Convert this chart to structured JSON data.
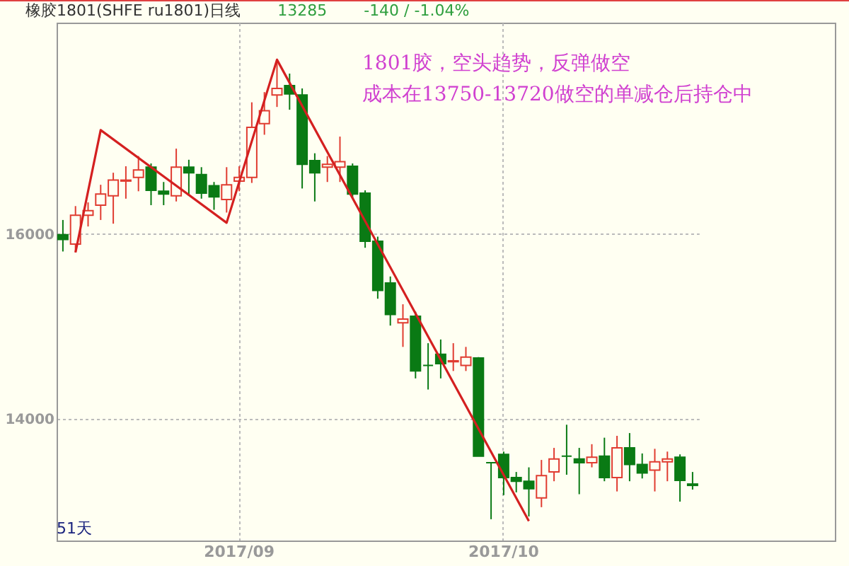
{
  "chart_data": {
    "type": "candlestick",
    "title": "橡胶1801(SHFE ru1801)日线",
    "annotations": [
      "13285",
      "-140 / -1.04%",
      "1801胶，空头趋势，反弹做空",
      "成本在13750-13720做空的单减仓后持仓中",
      "51天"
    ],
    "categories": [
      null,
      null,
      null,
      null,
      null,
      null,
      null,
      null,
      null,
      null,
      null,
      null,
      null,
      null,
      "2017/09",
      null,
      null,
      null,
      null,
      null,
      null,
      null,
      null,
      null,
      null,
      null,
      null,
      null,
      null,
      null,
      null,
      null,
      null,
      null,
      null,
      "2017/10",
      null,
      null,
      null,
      null,
      null,
      null,
      null,
      null,
      null,
      null,
      null,
      null,
      null,
      null,
      null
    ],
    "ohlc": [
      [
        15990,
        16150,
        15810,
        15940
      ],
      [
        15890,
        16300,
        15800,
        16200
      ],
      [
        16200,
        16340,
        16080,
        16250
      ],
      [
        16310,
        16530,
        16150,
        16430
      ],
      [
        16410,
        16660,
        16110,
        16580
      ],
      [
        16570,
        16730,
        16380,
        16580
      ],
      [
        16610,
        16840,
        16460,
        16690
      ],
      [
        16720,
        16760,
        16310,
        16470
      ],
      [
        16460,
        16560,
        16310,
        16430
      ],
      [
        16410,
        16920,
        16350,
        16720
      ],
      [
        16720,
        16800,
        16410,
        16660
      ],
      [
        16640,
        16720,
        16380,
        16440
      ],
      [
        16520,
        16560,
        16260,
        16400
      ],
      [
        16370,
        16720,
        16230,
        16530
      ],
      [
        16570,
        16730,
        16460,
        16610
      ],
      [
        16610,
        17420,
        16550,
        17150
      ],
      [
        17190,
        17530,
        17070,
        17330
      ],
      [
        17500,
        17880,
        17370,
        17570
      ],
      [
        17600,
        17730,
        17340,
        17510
      ],
      [
        17500,
        17570,
        16490,
        16750
      ],
      [
        16790,
        16870,
        16350,
        16660
      ],
      [
        16720,
        16840,
        16560,
        16750
      ],
      [
        16720,
        17050,
        16560,
        16780
      ],
      [
        16730,
        16760,
        16380,
        16430
      ],
      [
        16440,
        16470,
        15850,
        15920
      ],
      [
        15920,
        15970,
        15300,
        15390
      ],
      [
        15470,
        15540,
        15010,
        15130
      ],
      [
        15040,
        15240,
        14780,
        15080
      ],
      [
        15110,
        15160,
        14440,
        14520
      ],
      [
        14580,
        14820,
        14320,
        14580
      ],
      [
        14700,
        14860,
        14440,
        14600
      ],
      [
        14620,
        14820,
        14520,
        14630
      ],
      [
        14580,
        14780,
        14520,
        14670
      ],
      [
        14660,
        14670,
        13600,
        13600
      ],
      [
        13530,
        13530,
        12920,
        13530
      ],
      [
        13620,
        13650,
        13180,
        13370
      ],
      [
        13370,
        13430,
        13210,
        13330
      ],
      [
        13330,
        13480,
        12950,
        13250
      ],
      [
        13150,
        13560,
        13050,
        13390
      ],
      [
        13430,
        13690,
        13330,
        13570
      ],
      [
        13600,
        13940,
        13400,
        13600
      ],
      [
        13570,
        13690,
        13190,
        13530
      ],
      [
        13530,
        13730,
        13480,
        13590
      ],
      [
        13600,
        13800,
        13330,
        13370
      ],
      [
        13370,
        13820,
        13220,
        13690
      ],
      [
        13690,
        13850,
        13330,
        13510
      ],
      [
        13510,
        13630,
        13360,
        13420
      ],
      [
        13450,
        13680,
        13220,
        13540
      ],
      [
        13540,
        13650,
        13330,
        13570
      ],
      [
        13590,
        13620,
        13110,
        13340
      ],
      [
        13300,
        13430,
        13240,
        13285
      ]
    ],
    "colors": [
      "#0a7a14",
      "#e03c31",
      "#e03c31",
      "#e03c31",
      "#e03c31",
      "#e03c31",
      "#e03c31",
      "#0a7a14",
      "#0a7a14",
      "#e03c31",
      "#0a7a14",
      "#0a7a14",
      "#0a7a14",
      "#e03c31",
      "#e03c31",
      "#e03c31",
      "#e03c31",
      "#e03c31",
      "#0a7a14",
      "#0a7a14",
      "#0a7a14",
      "#e03c31",
      "#e03c31",
      "#0a7a14",
      "#0a7a14",
      "#0a7a14",
      "#0a7a14",
      "#e03c31",
      "#0a7a14",
      "#0a7a14",
      "#0a7a14",
      "#e03c31",
      "#e03c31",
      "#0a7a14",
      "#0a7a14",
      "#0a7a14",
      "#0a7a14",
      "#0a7a14",
      "#e03c31",
      "#e03c31",
      "#0a7a14",
      "#0a7a14",
      "#e03c31",
      "#0a7a14",
      "#e03c31",
      "#0a7a14",
      "#0a7a14",
      "#e03c31",
      "#e03c31",
      "#0a7a14",
      "#0a7a14"
    ],
    "series": [
      {
        "type": "line",
        "color": "#d42020",
        "values": [
          null,
          15800,
          null,
          17120,
          null,
          null,
          null,
          null,
          null,
          null,
          null,
          null,
          null,
          16120,
          null,
          null,
          null,
          17880,
          null,
          null,
          null,
          null,
          null,
          null,
          null,
          null,
          null,
          null,
          null,
          null,
          null,
          null,
          null,
          null,
          null,
          null,
          null,
          12900,
          null,
          null,
          null,
          null,
          null,
          null,
          null,
          null,
          null,
          null,
          null,
          null,
          null
        ]
      }
    ],
    "ylim": [
      12690,
      18280
    ],
    "yticks": [
      14000,
      16000
    ],
    "grid": true
  }
}
